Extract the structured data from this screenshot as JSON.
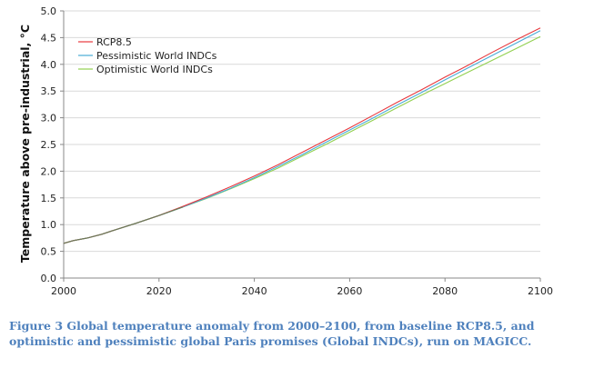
{
  "chart_data": {
    "type": "line",
    "title": "",
    "xlabel": "",
    "ylabel": "Temperature above pre-industrial, °C",
    "xlim": [
      2000,
      2100
    ],
    "ylim": [
      0,
      5
    ],
    "xticks": [
      "2000",
      "2020",
      "2040",
      "2060",
      "2080",
      "2100"
    ],
    "yticks": [
      "0.0",
      "0.5",
      "1.0",
      "1.5",
      "2.0",
      "2.5",
      "3.0",
      "3.5",
      "4.0",
      "4.5",
      "5.0"
    ],
    "grid": true,
    "legend_position": "top-left",
    "x": [
      2000,
      2002,
      2005,
      2008,
      2010,
      2015,
      2020,
      2025,
      2030,
      2035,
      2040,
      2045,
      2050,
      2055,
      2060,
      2065,
      2070,
      2075,
      2080,
      2085,
      2090,
      2095,
      2100
    ],
    "series": [
      {
        "name": "RCP8.5",
        "color": "#e8383d",
        "values": [
          0.65,
          0.7,
          0.75,
          0.82,
          0.88,
          1.02,
          1.17,
          1.34,
          1.52,
          1.71,
          1.91,
          2.12,
          2.35,
          2.58,
          2.81,
          3.05,
          3.29,
          3.52,
          3.76,
          3.99,
          4.23,
          4.46,
          4.68
        ]
      },
      {
        "name": "Pessimistic World INDCs",
        "color": "#4aabd6",
        "values": [
          0.65,
          0.7,
          0.75,
          0.82,
          0.88,
          1.02,
          1.17,
          1.33,
          1.5,
          1.68,
          1.88,
          2.09,
          2.31,
          2.54,
          2.77,
          3.0,
          3.24,
          3.47,
          3.71,
          3.94,
          4.17,
          4.4,
          4.63
        ]
      },
      {
        "name": "Optimistic World INDCs",
        "color": "#92d050",
        "values": [
          0.65,
          0.7,
          0.75,
          0.82,
          0.88,
          1.02,
          1.17,
          1.33,
          1.49,
          1.67,
          1.86,
          2.06,
          2.28,
          2.5,
          2.73,
          2.96,
          3.19,
          3.42,
          3.64,
          3.86,
          4.08,
          4.3,
          4.52
        ]
      }
    ]
  },
  "caption": "Figure 3 Global temperature anomaly from 2000–2100, from baseline RCP8.5, and optimistic and pessimistic global Paris promises (Global INDCs), run on MAGICC."
}
